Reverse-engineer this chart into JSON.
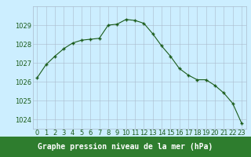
{
  "x": [
    0,
    1,
    2,
    3,
    4,
    5,
    6,
    7,
    8,
    9,
    10,
    11,
    12,
    13,
    14,
    15,
    16,
    17,
    18,
    19,
    20,
    21,
    22,
    23
  ],
  "y": [
    1026.2,
    1026.9,
    1027.35,
    1027.75,
    1028.05,
    1028.2,
    1028.25,
    1028.3,
    1029.0,
    1029.05,
    1029.3,
    1029.25,
    1029.1,
    1028.55,
    1027.9,
    1027.35,
    1026.7,
    1026.35,
    1026.1,
    1026.1,
    1025.8,
    1025.4,
    1024.85,
    1023.8
  ],
  "ylim": [
    1023.5,
    1030.0
  ],
  "yticks": [
    1024,
    1025,
    1026,
    1027,
    1028,
    1029
  ],
  "xticks": [
    0,
    1,
    2,
    3,
    4,
    5,
    6,
    7,
    8,
    9,
    10,
    11,
    12,
    13,
    14,
    15,
    16,
    17,
    18,
    19,
    20,
    21,
    22,
    23
  ],
  "xlabel": "Graphe pression niveau de la mer (hPa)",
  "line_color": "#1a5c1a",
  "marker_color": "#1a5c1a",
  "bg_color": "#cceeff",
  "grid_major_color": "#aabbcc",
  "grid_minor_color": "#ddeeff",
  "title_bg_color": "#2e7d2e",
  "title_text_color": "#ffffff",
  "xlabel_fontsize": 7.0,
  "tick_fontsize": 6.0
}
